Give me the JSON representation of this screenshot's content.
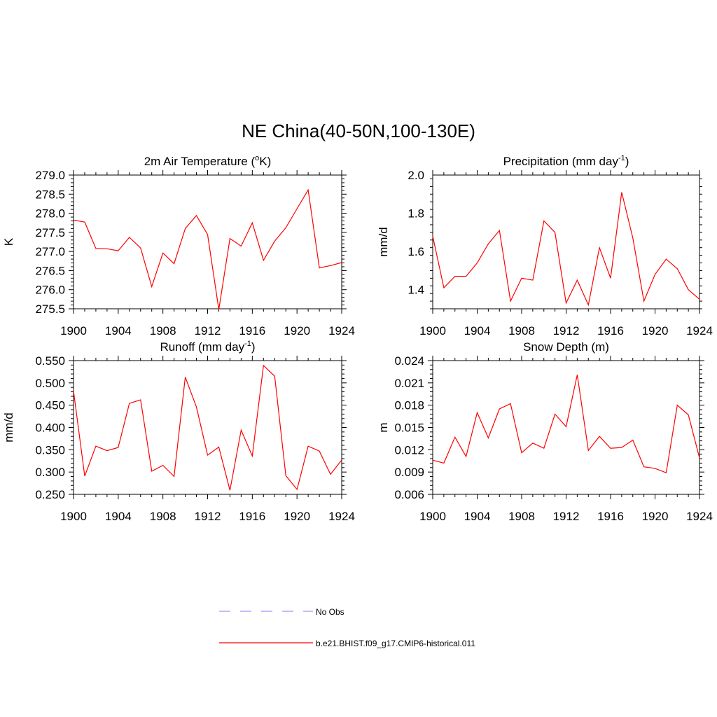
{
  "figure_title": "NE China(40-50N,100-130E)",
  "chart_data": [
    {
      "type": "line",
      "title": "2m Air Temperature (°K)",
      "title_parts": [
        "2m Air Temperature (",
        "o",
        "K)"
      ],
      "xlabel": "",
      "ylabel": "K",
      "xlim": [
        1900,
        1924
      ],
      "ylim": [
        275.5,
        279.0
      ],
      "x_ticks": [
        "1900",
        "1904",
        "1908",
        "1912",
        "1916",
        "1920",
        "1924"
      ],
      "y_ticks": [
        "275.5",
        "276.0",
        "276.5",
        "277.0",
        "277.5",
        "278.0",
        "278.5",
        "279.0"
      ],
      "series": [
        {
          "name": "b.e21.BHIST.f09_g17.CMIP6-historical.011",
          "color": "#ff0000",
          "x": [
            1900,
            1901,
            1902,
            1903,
            1904,
            1905,
            1906,
            1907,
            1908,
            1909,
            1910,
            1911,
            1912,
            1913,
            1914,
            1915,
            1916,
            1917,
            1918,
            1919,
            1920,
            1921,
            1922,
            1923,
            1924
          ],
          "y": [
            277.82,
            277.77,
            277.08,
            277.07,
            277.02,
            277.37,
            277.09,
            276.08,
            276.96,
            276.68,
            277.6,
            277.94,
            277.44,
            275.48,
            277.34,
            277.14,
            277.75,
            276.77,
            277.27,
            277.62,
            278.12,
            278.61,
            276.57,
            276.63,
            276.71
          ]
        }
      ]
    },
    {
      "type": "line",
      "title": "Precipitation (mm day-1)",
      "title_parts": [
        "Precipitation (mm day",
        "-1",
        ")"
      ],
      "xlabel": "",
      "ylabel": "mm/d",
      "xlim": [
        1900,
        1924
      ],
      "ylim": [
        1.3,
        2.0
      ],
      "x_ticks": [
        "1900",
        "1904",
        "1908",
        "1912",
        "1916",
        "1920",
        "1924"
      ],
      "y_ticks": [
        "1.4",
        "1.6",
        "1.8",
        "2.0"
      ],
      "series": [
        {
          "name": "b.e21.BHIST.f09_g17.CMIP6-historical.011",
          "color": "#ff0000",
          "x": [
            1900,
            1901,
            1902,
            1903,
            1904,
            1905,
            1906,
            1907,
            1908,
            1909,
            1910,
            1911,
            1912,
            1913,
            1914,
            1915,
            1916,
            1917,
            1918,
            1919,
            1920,
            1921,
            1922,
            1923,
            1924
          ],
          "y": [
            1.68,
            1.41,
            1.47,
            1.47,
            1.54,
            1.64,
            1.71,
            1.34,
            1.46,
            1.45,
            1.76,
            1.7,
            1.33,
            1.45,
            1.32,
            1.62,
            1.46,
            1.91,
            1.67,
            1.34,
            1.48,
            1.56,
            1.51,
            1.4,
            1.35
          ]
        }
      ]
    },
    {
      "type": "line",
      "title": "Runoff (mm day-1)",
      "title_parts": [
        "Runoff (mm day",
        "-1",
        ")"
      ],
      "xlabel": "",
      "ylabel": "mm/d",
      "xlim": [
        1900,
        1924
      ],
      "ylim": [
        0.25,
        0.55
      ],
      "x_ticks": [
        "1900",
        "1904",
        "1908",
        "1912",
        "1916",
        "1920",
        "1924"
      ],
      "y_ticks": [
        "0.250",
        "0.300",
        "0.350",
        "0.400",
        "0.450",
        "0.500",
        "0.550"
      ],
      "series": [
        {
          "name": "b.e21.BHIST.f09_g17.CMIP6-historical.011",
          "color": "#ff0000",
          "x": [
            1900,
            1901,
            1902,
            1903,
            1904,
            1905,
            1906,
            1907,
            1908,
            1909,
            1910,
            1911,
            1912,
            1913,
            1914,
            1915,
            1916,
            1917,
            1918,
            1919,
            1920,
            1921,
            1922,
            1923,
            1924
          ],
          "y": [
            0.482,
            0.291,
            0.358,
            0.348,
            0.355,
            0.454,
            0.462,
            0.302,
            0.315,
            0.29,
            0.513,
            0.446,
            0.338,
            0.356,
            0.259,
            0.394,
            0.336,
            0.539,
            0.515,
            0.292,
            0.261,
            0.358,
            0.347,
            0.295,
            0.327
          ]
        }
      ]
    },
    {
      "type": "line",
      "title": "Snow Depth (m)",
      "title_parts": [
        "Snow Depth (m)",
        "",
        ""
      ],
      "xlabel": "",
      "ylabel": "m",
      "xlim": [
        1900,
        1924
      ],
      "ylim": [
        0.006,
        0.024
      ],
      "x_ticks": [
        "1900",
        "1904",
        "1908",
        "1912",
        "1916",
        "1920",
        "1924"
      ],
      "y_ticks": [
        "0.006",
        "0.009",
        "0.012",
        "0.015",
        "0.018",
        "0.021",
        "0.024"
      ],
      "series": [
        {
          "name": "b.e21.BHIST.f09_g17.CMIP6-historical.011",
          "color": "#ff0000",
          "x": [
            1900,
            1901,
            1902,
            1903,
            1904,
            1905,
            1906,
            1907,
            1908,
            1909,
            1910,
            1911,
            1912,
            1913,
            1914,
            1915,
            1916,
            1917,
            1918,
            1919,
            1920,
            1921,
            1922,
            1923,
            1924
          ],
          "y": [
            0.0106,
            0.0102,
            0.0137,
            0.0111,
            0.017,
            0.0136,
            0.0175,
            0.0182,
            0.0116,
            0.0129,
            0.0122,
            0.0168,
            0.0151,
            0.0221,
            0.0119,
            0.0138,
            0.0122,
            0.0123,
            0.0133,
            0.0097,
            0.0095,
            0.0089,
            0.018,
            0.0167,
            0.0109
          ]
        }
      ]
    }
  ],
  "legend": {
    "items": [
      {
        "label": "No Obs",
        "color": "#9999ff",
        "style": "dashed"
      },
      {
        "label": "b.e21.BHIST.f09_g17.CMIP6-historical.011",
        "color": "#ff0000",
        "style": "solid"
      }
    ]
  }
}
